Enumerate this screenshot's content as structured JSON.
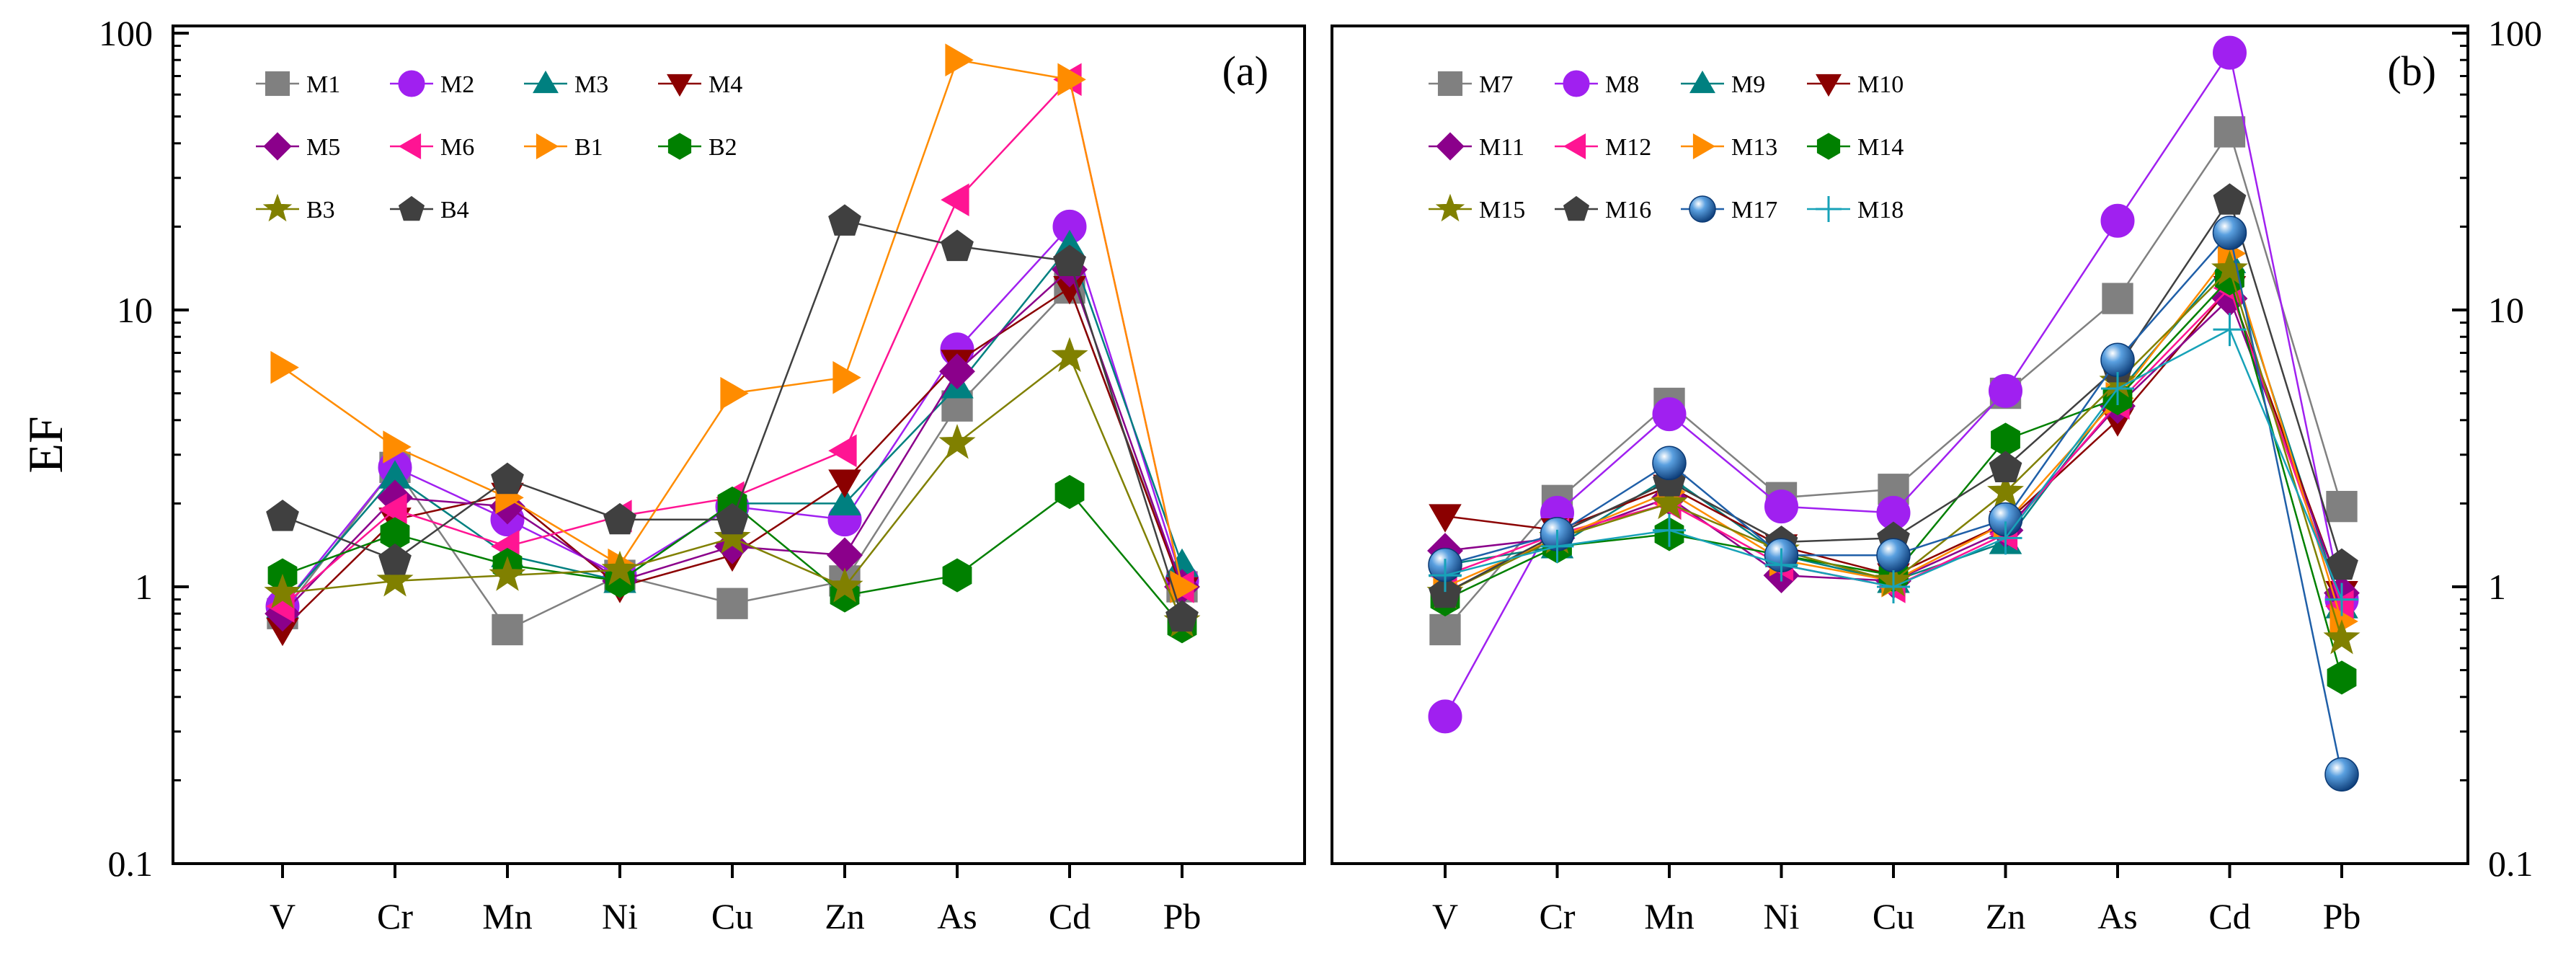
{
  "chart_data": [
    {
      "type": "line",
      "panel_label": "(a)",
      "y_scale": "log",
      "ylim": [
        0.1,
        100
      ],
      "ylabel": "EF",
      "y_ticks": [
        0.1,
        1,
        10,
        100
      ],
      "y_tick_labels": [
        "0.1",
        "1",
        "10",
        "100"
      ],
      "y_tick_side": "left",
      "categories": [
        "V",
        "Cr",
        "Mn",
        "Ni",
        "Cu",
        "Zn",
        "As",
        "Cd",
        "Pb"
      ],
      "legend_position": "top-left",
      "legend_columns": 4,
      "series": [
        {
          "name": "M1",
          "color": "#808080",
          "marker": "square",
          "values": [
            0.8,
            2.7,
            0.7,
            1.1,
            0.87,
            1.05,
            4.5,
            12,
            1.0
          ]
        },
        {
          "name": "M2",
          "color": "#a020f0",
          "marker": "circle",
          "values": [
            0.85,
            2.7,
            1.75,
            1.1,
            1.95,
            1.75,
            7.2,
            20,
            1.05
          ]
        },
        {
          "name": "M3",
          "color": "#008080",
          "marker": "triangle-up",
          "values": [
            0.85,
            2.5,
            1.3,
            1.05,
            2.0,
            2.0,
            5.3,
            17,
            1.2
          ]
        },
        {
          "name": "M4",
          "color": "#8b0000",
          "marker": "triangle-down",
          "values": [
            0.7,
            1.75,
            2.15,
            1.0,
            1.3,
            2.4,
            6.5,
            12,
            0.98
          ]
        },
        {
          "name": "M5",
          "color": "#8b008b",
          "marker": "diamond",
          "values": [
            0.8,
            2.1,
            1.95,
            1.05,
            1.4,
            1.3,
            6.0,
            14,
            1.0
          ]
        },
        {
          "name": "M6",
          "color": "#ff1493",
          "marker": "triangle-left",
          "values": [
            0.85,
            1.9,
            1.4,
            1.8,
            2.1,
            3.1,
            25,
            68,
            1.0
          ]
        },
        {
          "name": "B1",
          "color": "#ff8c00",
          "marker": "triangle-right",
          "values": [
            6.2,
            3.2,
            2.1,
            1.2,
            5.0,
            5.7,
            80,
            68,
            1.0
          ]
        },
        {
          "name": "B2",
          "color": "#008000",
          "marker": "hexagon",
          "values": [
            1.1,
            1.55,
            1.2,
            1.05,
            2.0,
            0.93,
            1.1,
            2.2,
            0.72
          ]
        },
        {
          "name": "B3",
          "color": "#808000",
          "marker": "star",
          "values": [
            0.95,
            1.05,
            1.1,
            1.15,
            1.5,
            1.0,
            3.3,
            6.8,
            0.75
          ]
        },
        {
          "name": "B4",
          "color": "#404040",
          "marker": "pentagon",
          "values": [
            1.8,
            1.25,
            2.45,
            1.75,
            1.75,
            21,
            17,
            15,
            0.78
          ]
        }
      ]
    },
    {
      "type": "line",
      "panel_label": "(b)",
      "y_scale": "log",
      "ylim": [
        0.1,
        100
      ],
      "y_ticks": [
        0.1,
        1,
        10,
        100
      ],
      "y_tick_labels": [
        "0.1",
        "1",
        "10",
        "100"
      ],
      "y_tick_side": "right",
      "categories": [
        "V",
        "Cr",
        "Mn",
        "Ni",
        "Cu",
        "Zn",
        "As",
        "Cd",
        "Pb"
      ],
      "legend_position": "top-left",
      "legend_columns": 4,
      "series": [
        {
          "name": "M7",
          "color": "#808080",
          "marker": "square",
          "values": [
            0.7,
            2.05,
            4.6,
            2.1,
            2.25,
            5.0,
            11,
            44,
            1.95
          ]
        },
        {
          "name": "M8",
          "color": "#a020f0",
          "marker": "circle",
          "values": [
            0.34,
            1.85,
            4.2,
            1.95,
            1.85,
            5.1,
            21,
            85,
            0.9
          ]
        },
        {
          "name": "M9",
          "color": "#008080",
          "marker": "triangle-up",
          "values": [
            1.2,
            1.4,
            2.5,
            1.3,
            1.05,
            1.45,
            5.0,
            15,
            0.85
          ]
        },
        {
          "name": "M10",
          "color": "#8b0000",
          "marker": "triangle-down",
          "values": [
            1.8,
            1.6,
            2.3,
            1.4,
            1.1,
            1.7,
            4.0,
            12,
            0.95
          ]
        },
        {
          "name": "M11",
          "color": "#8b008b",
          "marker": "diamond",
          "values": [
            1.35,
            1.5,
            2.1,
            1.1,
            1.05,
            1.6,
            4.5,
            11,
            0.95
          ]
        },
        {
          "name": "M12",
          "color": "#ff1493",
          "marker": "triangle-left",
          "values": [
            1.1,
            1.55,
            2.0,
            1.2,
            1.0,
            1.55,
            4.6,
            12,
            0.85
          ]
        },
        {
          "name": "M13",
          "color": "#ff8c00",
          "marker": "triangle-right",
          "values": [
            1.0,
            1.5,
            2.2,
            1.25,
            1.05,
            1.7,
            4.8,
            16,
            0.75
          ]
        },
        {
          "name": "M14",
          "color": "#008000",
          "marker": "hexagon",
          "values": [
            0.9,
            1.4,
            1.55,
            1.3,
            1.1,
            3.4,
            4.8,
            13,
            0.47
          ]
        },
        {
          "name": "M15",
          "color": "#808000",
          "marker": "star",
          "values": [
            0.95,
            1.5,
            2.0,
            1.35,
            1.05,
            2.2,
            5.5,
            14,
            0.65
          ]
        },
        {
          "name": "M16",
          "color": "#404040",
          "marker": "pentagon",
          "values": [
            0.95,
            1.55,
            2.4,
            1.45,
            1.5,
            2.7,
            6.2,
            25,
            1.2
          ]
        },
        {
          "name": "M17",
          "color": "#1f5fa8",
          "marker": "sphere",
          "values": [
            1.2,
            1.55,
            2.8,
            1.3,
            1.3,
            1.75,
            6.6,
            19,
            0.21
          ]
        },
        {
          "name": "M18",
          "color": "#17a2b8",
          "marker": "plus",
          "values": [
            1.1,
            1.4,
            1.6,
            1.2,
            1.0,
            1.5,
            5.2,
            8.5,
            0.9
          ]
        }
      ]
    }
  ]
}
